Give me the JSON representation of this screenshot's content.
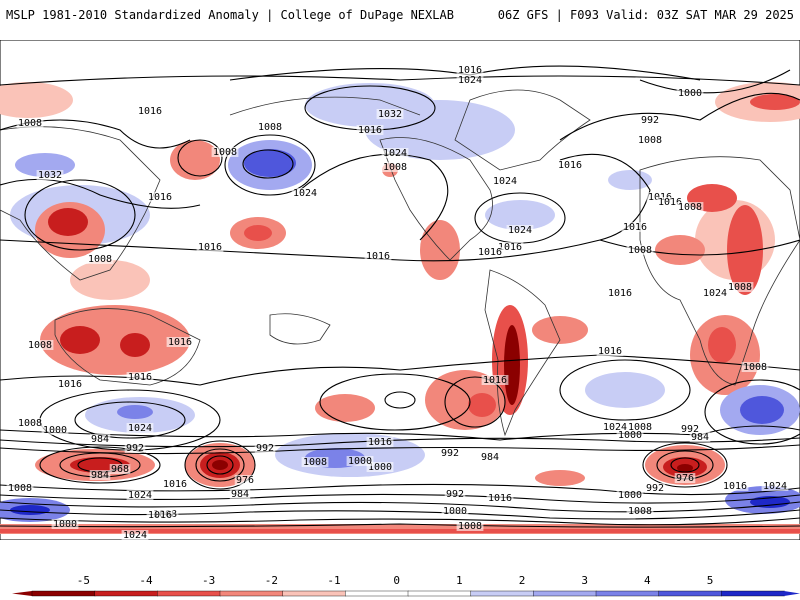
{
  "header": {
    "title": "MSLP 1981-2010 Standardized Anomaly | College of DuPage NEXLAB",
    "run_info": "06Z GFS | F093 Valid: 03Z SAT MAR 29 2025"
  },
  "colors": {
    "neg5": "#8b0000",
    "neg4": "#c81e1e",
    "neg3": "#e8504b",
    "neg2": "#f2877b",
    "neg1": "#fac3b8",
    "zero": "#ffffff",
    "pos1": "#c8cdf5",
    "pos2": "#a3a9f0",
    "pos3": "#7b82e8",
    "pos4": "#4f57dc",
    "pos5": "#1e28c8",
    "contour": "#000000",
    "coast": "#222222"
  },
  "colorbar": {
    "ticks": [
      "-5",
      "-4",
      "-3",
      "-2",
      "-1",
      "0",
      "1",
      "2",
      "3",
      "4",
      "5"
    ]
  },
  "isobar_labels": [
    {
      "text": "1016"
    },
    {
      "text": "1024"
    },
    {
      "text": "1008"
    },
    {
      "text": "1016"
    },
    {
      "text": "1008"
    },
    {
      "text": "1032"
    },
    {
      "text": "1016"
    },
    {
      "text": "1008"
    },
    {
      "text": "1024"
    },
    {
      "text": "1016"
    },
    {
      "text": "1016"
    },
    {
      "text": "1008"
    },
    {
      "text": "992"
    },
    {
      "text": "1000"
    },
    {
      "text": "1008"
    },
    {
      "text": "1016"
    },
    {
      "text": "1024"
    },
    {
      "text": "1032"
    },
    {
      "text": "1024"
    },
    {
      "text": "1024"
    },
    {
      "text": "1008"
    },
    {
      "text": "1016"
    },
    {
      "text": "1016"
    },
    {
      "text": "1016"
    },
    {
      "text": "1008"
    },
    {
      "text": "1016"
    },
    {
      "text": "1016"
    },
    {
      "text": "1024"
    },
    {
      "text": "1016"
    },
    {
      "text": "1016"
    },
    {
      "text": "1008"
    },
    {
      "text": "1008"
    },
    {
      "text": "1008"
    },
    {
      "text": "1016"
    },
    {
      "text": "1024"
    },
    {
      "text": "1016"
    },
    {
      "text": "1016"
    },
    {
      "text": "1008"
    },
    {
      "text": "1000"
    },
    {
      "text": "984"
    },
    {
      "text": "992"
    },
    {
      "text": "968"
    },
    {
      "text": "984"
    },
    {
      "text": "1016"
    },
    {
      "text": "1024"
    },
    {
      "text": "1008"
    },
    {
      "text": "992"
    },
    {
      "text": "984"
    },
    {
      "text": "976"
    },
    {
      "text": "1000"
    },
    {
      "text": "1008"
    },
    {
      "text": "1016"
    },
    {
      "text": "1000"
    },
    {
      "text": "992"
    },
    {
      "text": "984"
    },
    {
      "text": "1016"
    },
    {
      "text": "1024"
    },
    {
      "text": "1008"
    },
    {
      "text": "1000"
    },
    {
      "text": "992"
    },
    {
      "text": "984"
    },
    {
      "text": "976"
    },
    {
      "text": "992"
    },
    {
      "text": "1000"
    },
    {
      "text": "1008"
    },
    {
      "text": "992"
    },
    {
      "text": "1000"
    },
    {
      "text": "1008"
    },
    {
      "text": "1016"
    },
    {
      "text": "1024"
    },
    {
      "text": "1016"
    },
    {
      "text": "1016"
    },
    {
      "text": "1008"
    },
    {
      "text": "1000"
    },
    {
      "text": "1008"
    },
    {
      "text": "1016"
    },
    {
      "text": "1024"
    }
  ]
}
